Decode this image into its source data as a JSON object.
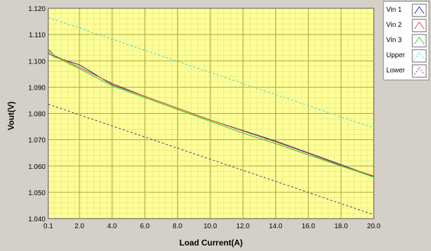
{
  "chart_data": {
    "type": "line",
    "xlabel": "Load Current(A)",
    "ylabel": "Vout(V)",
    "xlim": [
      0.1,
      20.0
    ],
    "ylim": [
      1.04,
      1.12
    ],
    "x_ticks": [
      0.1,
      2.0,
      4.0,
      6.0,
      8.0,
      10.0,
      12.0,
      14.0,
      16.0,
      18.0,
      20.0
    ],
    "x_tick_labels": [
      "0.1",
      "2.0",
      "4.0",
      "6.0",
      "8.0",
      "10.0",
      "12.0",
      "14.0",
      "16.0",
      "18.0",
      "20.0"
    ],
    "y_ticks": [
      1.04,
      1.05,
      1.06,
      1.07,
      1.08,
      1.09,
      1.1,
      1.11,
      1.12
    ],
    "y_tick_labels": [
      "1.040",
      "1.050",
      "1.060",
      "1.070",
      "1.080",
      "1.090",
      "1.100",
      "1.110",
      "1.120"
    ],
    "grid": true,
    "legend_position": "right",
    "plot_background": "#ffff99",
    "grid_major_color": "#a8a840",
    "grid_minor_color": "#e6e680",
    "series": [
      {
        "name": "Vin 1",
        "color": "#2030c0",
        "style": "solid",
        "x": [
          0.1,
          0.5,
          1.0,
          2.0,
          4.0,
          6.0,
          8.0,
          10.0,
          12.0,
          14.0,
          16.0,
          18.0,
          20.0
        ],
        "y": [
          1.103,
          1.1015,
          1.1005,
          1.0985,
          1.091,
          1.0865,
          1.082,
          1.0775,
          1.0735,
          1.0695,
          1.065,
          1.0605,
          1.056
        ]
      },
      {
        "name": "Vin 2",
        "color": "#e05030",
        "style": "solid",
        "x": [
          0.1,
          0.5,
          1.0,
          2.0,
          4.0,
          6.0,
          8.0,
          10.0,
          12.0,
          14.0,
          16.0,
          18.0,
          20.0
        ],
        "y": [
          1.104,
          1.102,
          1.1005,
          1.0975,
          1.0915,
          1.0865,
          1.082,
          1.0775,
          1.0733,
          1.0692,
          1.0648,
          1.0602,
          1.0562
        ]
      },
      {
        "name": "Vin 3",
        "color": "#30d030",
        "style": "solid",
        "x": [
          0.1,
          0.5,
          1.0,
          2.0,
          4.0,
          6.0,
          8.0,
          10.0,
          12.0,
          14.0,
          16.0,
          18.0,
          20.0
        ],
        "y": [
          1.1045,
          1.102,
          1.1,
          1.097,
          1.0905,
          1.086,
          1.0815,
          1.077,
          1.0725,
          1.0685,
          1.0642,
          1.06,
          1.0558
        ]
      },
      {
        "name": "Upper",
        "color": "#40d8e0",
        "style": "dashed",
        "x": [
          0.1,
          20.0
        ],
        "y": [
          1.1165,
          1.0745
        ]
      },
      {
        "name": "Lower",
        "color": "#8020a0",
        "style": "dashed",
        "x": [
          0.1,
          20.0
        ],
        "y": [
          1.0835,
          1.0415
        ]
      }
    ]
  }
}
